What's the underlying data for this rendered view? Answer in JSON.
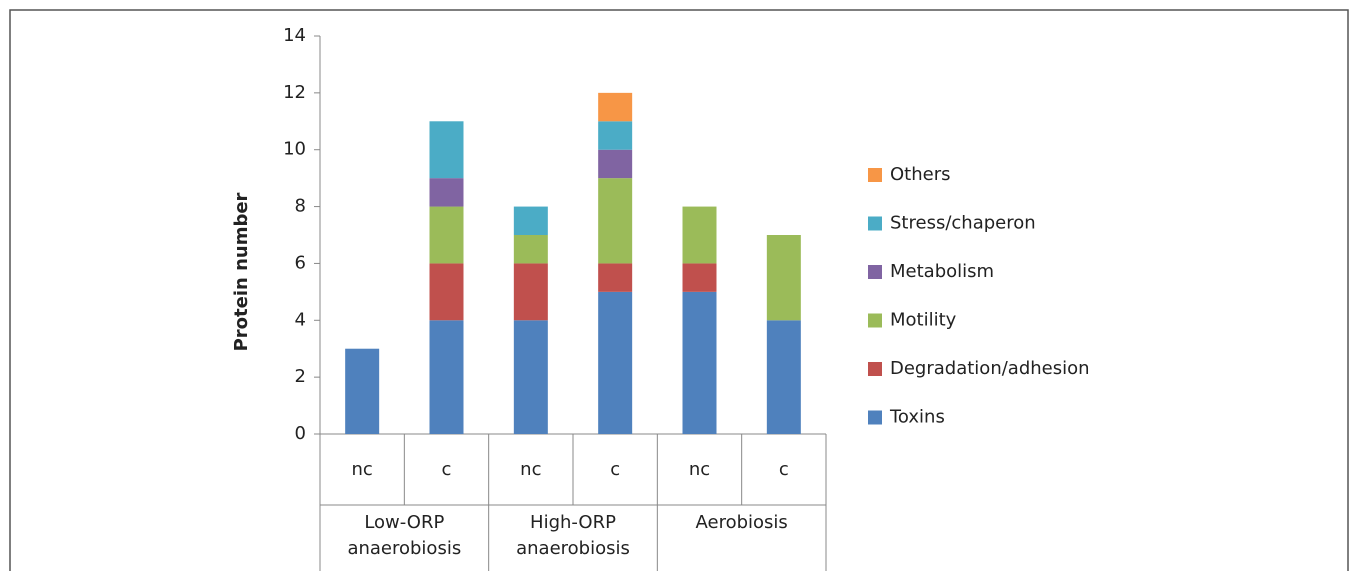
{
  "chart_data": {
    "type": "stacked-bar",
    "y_label": "Protein number",
    "categories": [
      "nc",
      "c",
      "nc",
      "c",
      "nc",
      "c"
    ],
    "groups": [
      "Low-ORP anaerobiosis",
      "High-ORP anaerobiosis",
      "Aerobiosis"
    ],
    "series": [
      {
        "name": "Toxins",
        "color": "#4f81bd",
        "values": [
          3,
          4,
          4,
          5,
          5,
          4
        ]
      },
      {
        "name": "Degradation/adhesion",
        "color": "#c0504d",
        "values": [
          0,
          2,
          2,
          1,
          1,
          0
        ]
      },
      {
        "name": "Motility",
        "color": "#9bbb59",
        "values": [
          0,
          2,
          1,
          3,
          2,
          3
        ]
      },
      {
        "name": "Metabolism",
        "color": "#8064a2",
        "values": [
          0,
          1,
          0,
          1,
          0,
          0
        ]
      },
      {
        "name": "Stress/chaperon",
        "color": "#4bacc6",
        "values": [
          0,
          2,
          1,
          1,
          0,
          0
        ]
      },
      {
        "name": "Others",
        "color": "#f79646",
        "values": [
          0,
          0,
          0,
          1,
          0,
          0
        ]
      }
    ],
    "ylim": [
      0,
      14
    ],
    "yticks": [
      0,
      2,
      4,
      6,
      8,
      10,
      12,
      14
    ]
  }
}
